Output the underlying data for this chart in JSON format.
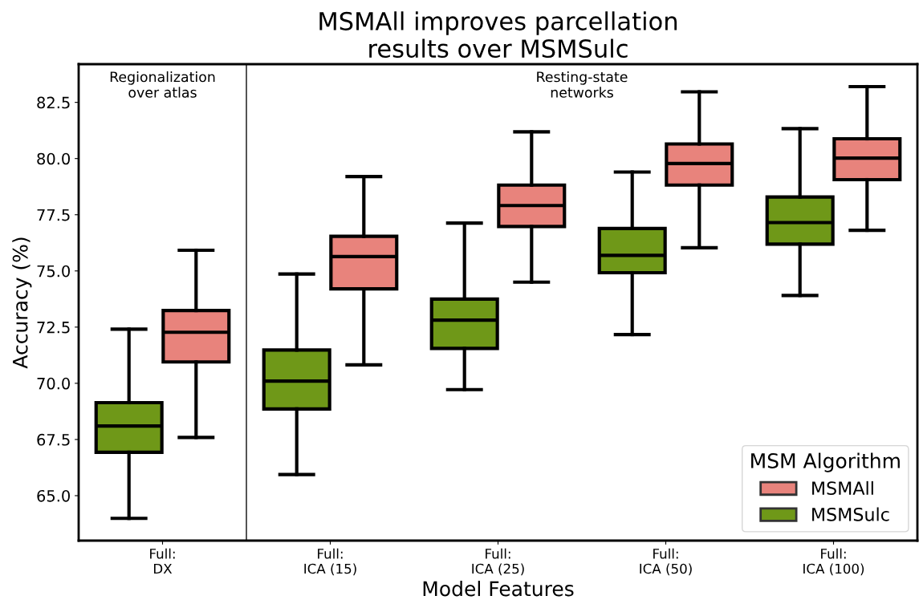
{
  "chart_data": {
    "type": "box",
    "title": "MSMAll improves parcellation\nresults over MSMSulc",
    "xlabel": "Model Features",
    "ylabel": "Accuracy (%)",
    "legend_title": "MSM Algorithm",
    "legend": "bottom right",
    "grid": false,
    "categories": [
      "Full:\nDX",
      "Full:\nICA (15)",
      "Full:\nICA (25)",
      "Full:\nICA (50)",
      "Full:\nICA (100)"
    ],
    "ylim": [
      63.0,
      84.2
    ],
    "yticks": [
      {
        "value": 65,
        "label": "65.0"
      },
      {
        "value": 67.5,
        "label": "67.5"
      },
      {
        "value": 70,
        "label": "70.0"
      },
      {
        "value": 72.5,
        "label": "72.5"
      },
      {
        "value": 75,
        "label": "75.0"
      },
      {
        "value": 77.5,
        "label": "77.5"
      },
      {
        "value": 80,
        "label": "80.0"
      },
      {
        "value": 82.5,
        "label": "82.5"
      }
    ],
    "series": [
      {
        "name": "MSMSulc",
        "color": "#6f9818",
        "boxes": [
          {
            "low": 63.99,
            "q1": 66.93,
            "median": 68.1,
            "q3": 69.14,
            "high": 72.41
          },
          {
            "low": 65.94,
            "q1": 68.86,
            "median": 70.1,
            "q3": 71.48,
            "high": 74.86
          },
          {
            "low": 69.72,
            "q1": 71.55,
            "median": 72.81,
            "q3": 73.75,
            "high": 77.13
          },
          {
            "low": 72.17,
            "q1": 74.92,
            "median": 75.69,
            "q3": 76.89,
            "high": 79.4
          },
          {
            "low": 73.91,
            "q1": 76.19,
            "median": 77.15,
            "q3": 78.29,
            "high": 81.33
          }
        ]
      },
      {
        "name": "MSMAll",
        "color": "#e8837c",
        "boxes": [
          {
            "low": 67.59,
            "q1": 70.95,
            "median": 72.27,
            "q3": 73.24,
            "high": 75.92
          },
          {
            "low": 70.82,
            "q1": 74.2,
            "median": 75.64,
            "q3": 76.54,
            "high": 79.2
          },
          {
            "low": 74.5,
            "q1": 76.98,
            "median": 77.91,
            "q3": 78.82,
            "high": 81.19
          },
          {
            "low": 76.03,
            "q1": 78.82,
            "median": 79.78,
            "q3": 80.65,
            "high": 82.97
          },
          {
            "low": 76.81,
            "q1": 79.06,
            "median": 80.02,
            "q3": 80.88,
            "high": 83.2
          }
        ]
      }
    ],
    "annotations": [
      "Regionalization\nover atlas",
      "Resting-state\nnetworks"
    ]
  }
}
